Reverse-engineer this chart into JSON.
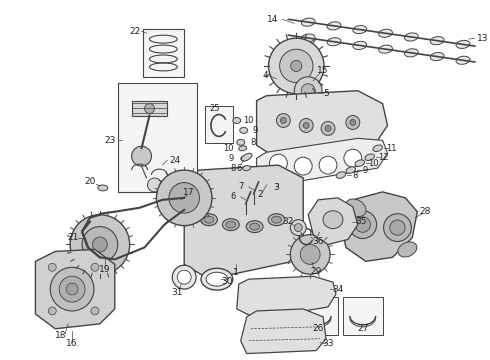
{
  "background_color": "#ffffff",
  "figure_width": 4.9,
  "figure_height": 3.6,
  "dpi": 100,
  "line_color": "#444444",
  "text_color": "#222222",
  "font_size": 6.5
}
